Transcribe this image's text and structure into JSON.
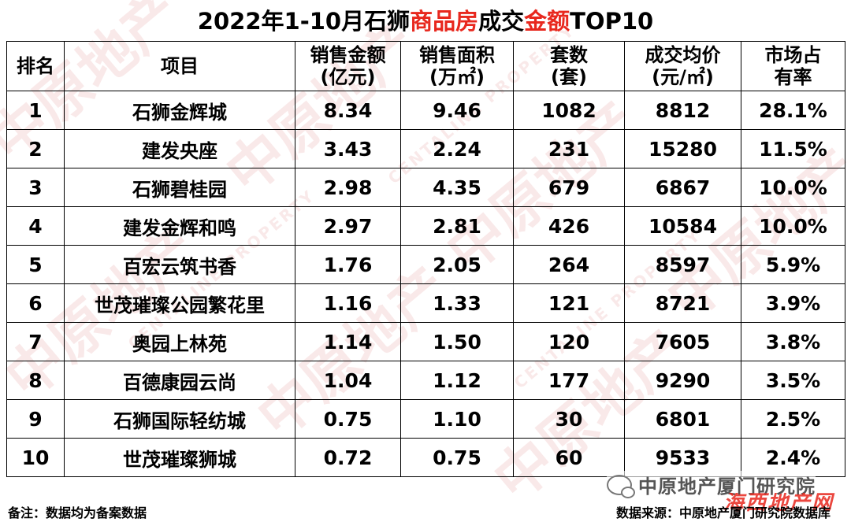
{
  "title": {
    "part1": "2022年1-10月石狮",
    "part2_red": "商品房",
    "part3": "成交",
    "part4_red": "金额",
    "part5": "TOP10"
  },
  "headers": [
    {
      "line1": "排名",
      "line2": ""
    },
    {
      "line1": "项目",
      "line2": ""
    },
    {
      "line1": "销售金额",
      "line2": "(亿元)"
    },
    {
      "line1": "销售面积",
      "line2": "(万㎡)"
    },
    {
      "line1": "套数",
      "line2": "(套)"
    },
    {
      "line1": "成交均价",
      "line2": "(元/㎡)"
    },
    {
      "line1": "市场占",
      "line2": "有率"
    }
  ],
  "rows": [
    {
      "rank": "1",
      "project": "石狮金辉城",
      "amount": "8.34",
      "area": "9.46",
      "units": "1082",
      "price": "8812",
      "share": "28.1%"
    },
    {
      "rank": "2",
      "project": "建发央座",
      "amount": "3.43",
      "area": "2.24",
      "units": "231",
      "price": "15280",
      "share": "11.5%"
    },
    {
      "rank": "3",
      "project": "石狮碧桂园",
      "amount": "2.98",
      "area": "4.35",
      "units": "679",
      "price": "6867",
      "share": "10.0%"
    },
    {
      "rank": "4",
      "project": "建发金辉和鸣",
      "amount": "2.97",
      "area": "2.81",
      "units": "426",
      "price": "10584",
      "share": "10.0%"
    },
    {
      "rank": "5",
      "project": "百宏云筑书香",
      "amount": "1.76",
      "area": "2.05",
      "units": "264",
      "price": "8597",
      "share": "5.9%"
    },
    {
      "rank": "6",
      "project": "世茂璀璨公园繁花里",
      "amount": "1.16",
      "area": "1.33",
      "units": "121",
      "price": "8721",
      "share": "3.9%"
    },
    {
      "rank": "7",
      "project": "奥园上林苑",
      "amount": "1.14",
      "area": "1.50",
      "units": "120",
      "price": "7605",
      "share": "3.8%"
    },
    {
      "rank": "8",
      "project": "百德康园云尚",
      "amount": "1.04",
      "area": "1.12",
      "units": "177",
      "price": "9290",
      "share": "3.5%"
    },
    {
      "rank": "9",
      "project": "石狮国际轻纺城",
      "amount": "0.75",
      "area": "1.10",
      "units": "30",
      "price": "6801",
      "share": "2.5%"
    },
    {
      "rank": "10",
      "project": "世茂璀璨狮城",
      "amount": "0.72",
      "area": "0.75",
      "units": "60",
      "price": "9533",
      "share": "2.4%"
    }
  ],
  "footer": {
    "note": "备注：数据均为备案数据",
    "source": "数据来源：中原地产厦门研究院数据库"
  },
  "watermark": {
    "brand": "中原地产",
    "brand_en": "CENTALINE PROPERTY",
    "wechat_account": "中原地产厦门研究院",
    "logo_text": "海西地产网"
  },
  "colors": {
    "accent_red": "#e8281e",
    "border": "#000000"
  }
}
